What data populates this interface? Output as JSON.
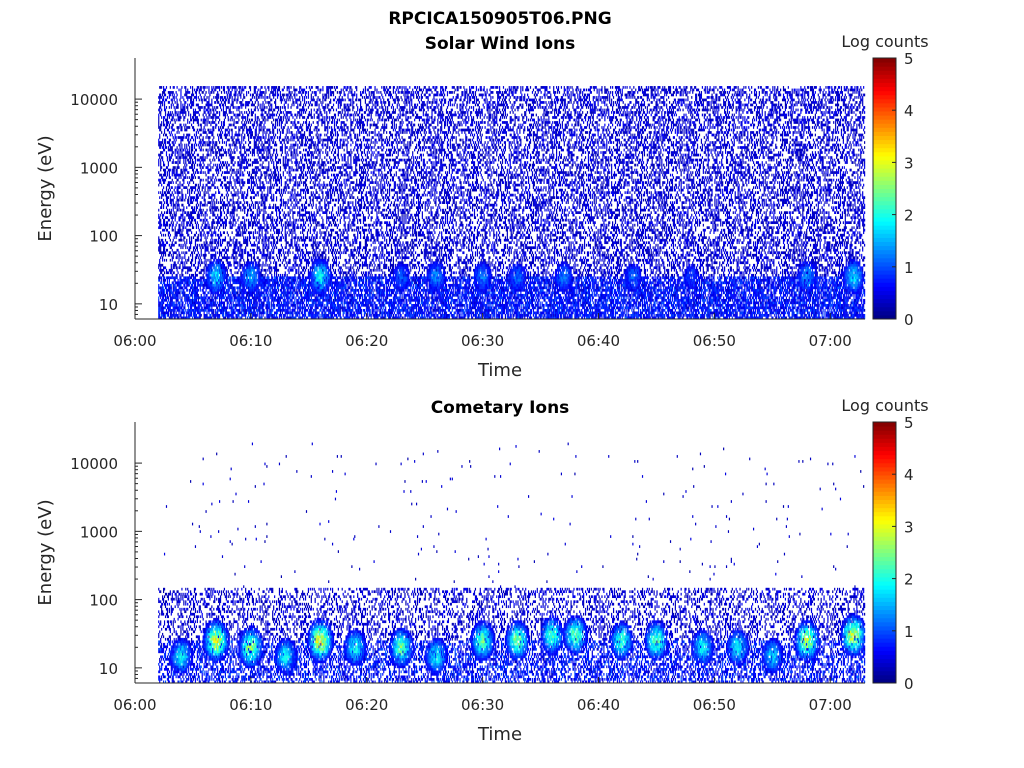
{
  "figure": {
    "title": "RPCICA150905T06.PNG"
  },
  "chart_data": [
    {
      "type": "heatmap",
      "title": "Solar Wind Ions",
      "xlabel": "Time",
      "ylabel": "Energy (eV)",
      "xlim": [
        "06:00",
        "07:03"
      ],
      "ylim": [
        6,
        40000
      ],
      "yscale": "log",
      "xticks": [
        "06:00",
        "06:10",
        "06:20",
        "06:30",
        "06:40",
        "06:50",
        "07:00"
      ],
      "yticks": [
        "10",
        "100",
        "1000",
        "10000"
      ],
      "grid": false,
      "colorbar": {
        "label": "Log counts",
        "min": 0,
        "max": 5,
        "ticks": [
          "0",
          "1",
          "2",
          "3",
          "4",
          "5"
        ],
        "colormap": "jet"
      },
      "data_start": "06:02",
      "data_end": "07:03",
      "background_level": 0.4,
      "background_energy_range_eV": [
        6,
        15000
      ],
      "low_energy_enhancements": [
        {
          "time": "06:07",
          "energy_eV": 25,
          "level": 1.8
        },
        {
          "time": "06:10",
          "energy_eV": 25,
          "level": 1.5
        },
        {
          "time": "06:16",
          "energy_eV": 25,
          "level": 2.0
        },
        {
          "time": "06:23",
          "energy_eV": 25,
          "level": 1.2
        },
        {
          "time": "06:26",
          "energy_eV": 25,
          "level": 1.4
        },
        {
          "time": "06:30",
          "energy_eV": 25,
          "level": 1.3
        },
        {
          "time": "06:33",
          "energy_eV": 25,
          "level": 1.2
        },
        {
          "time": "06:37",
          "energy_eV": 25,
          "level": 1.3
        },
        {
          "time": "06:43",
          "energy_eV": 25,
          "level": 1.2
        },
        {
          "time": "06:48",
          "energy_eV": 25,
          "level": 1.0
        },
        {
          "time": "06:58",
          "energy_eV": 25,
          "level": 1.5
        },
        {
          "time": "07:02",
          "energy_eV": 25,
          "level": 1.8
        }
      ]
    },
    {
      "type": "heatmap",
      "title": "Cometary Ions",
      "xlabel": "Time",
      "ylabel": "Energy (eV)",
      "xlim": [
        "06:00",
        "07:03"
      ],
      "ylim": [
        6,
        40000
      ],
      "yscale": "log",
      "xticks": [
        "06:00",
        "06:10",
        "06:20",
        "06:30",
        "06:40",
        "06:50",
        "07:00"
      ],
      "yticks": [
        "10",
        "100",
        "1000",
        "10000"
      ],
      "grid": false,
      "colorbar": {
        "label": "Log counts",
        "min": 0,
        "max": 5,
        "ticks": [
          "0",
          "1",
          "2",
          "3",
          "4",
          "5"
        ],
        "colormap": "jet"
      },
      "data_start": "06:02",
      "data_end": "07:03",
      "background_level": 0.4,
      "background_energy_range_eV": [
        6,
        150
      ],
      "low_energy_enhancements": [
        {
          "time": "06:04",
          "energy_eV": 15,
          "level": 2.0
        },
        {
          "time": "06:07",
          "energy_eV": 25,
          "level": 3.2
        },
        {
          "time": "06:10",
          "energy_eV": 20,
          "level": 2.8
        },
        {
          "time": "06:13",
          "energy_eV": 15,
          "level": 2.0
        },
        {
          "time": "06:16",
          "energy_eV": 25,
          "level": 3.4
        },
        {
          "time": "06:19",
          "energy_eV": 20,
          "level": 2.0
        },
        {
          "time": "06:23",
          "energy_eV": 20,
          "level": 2.5
        },
        {
          "time": "06:26",
          "energy_eV": 15,
          "level": 2.0
        },
        {
          "time": "06:30",
          "energy_eV": 25,
          "level": 2.5
        },
        {
          "time": "06:33",
          "energy_eV": 25,
          "level": 2.6
        },
        {
          "time": "06:36",
          "energy_eV": 30,
          "level": 2.3
        },
        {
          "time": "06:38",
          "energy_eV": 30,
          "level": 2.5
        },
        {
          "time": "06:42",
          "energy_eV": 25,
          "level": 2.3
        },
        {
          "time": "06:45",
          "energy_eV": 25,
          "level": 2.5
        },
        {
          "time": "06:49",
          "energy_eV": 20,
          "level": 2.0
        },
        {
          "time": "06:52",
          "energy_eV": 20,
          "level": 2.0
        },
        {
          "time": "06:55",
          "energy_eV": 15,
          "level": 1.8
        },
        {
          "time": "06:58",
          "energy_eV": 25,
          "level": 3.0
        },
        {
          "time": "07:02",
          "energy_eV": 30,
          "level": 3.2
        }
      ]
    }
  ]
}
